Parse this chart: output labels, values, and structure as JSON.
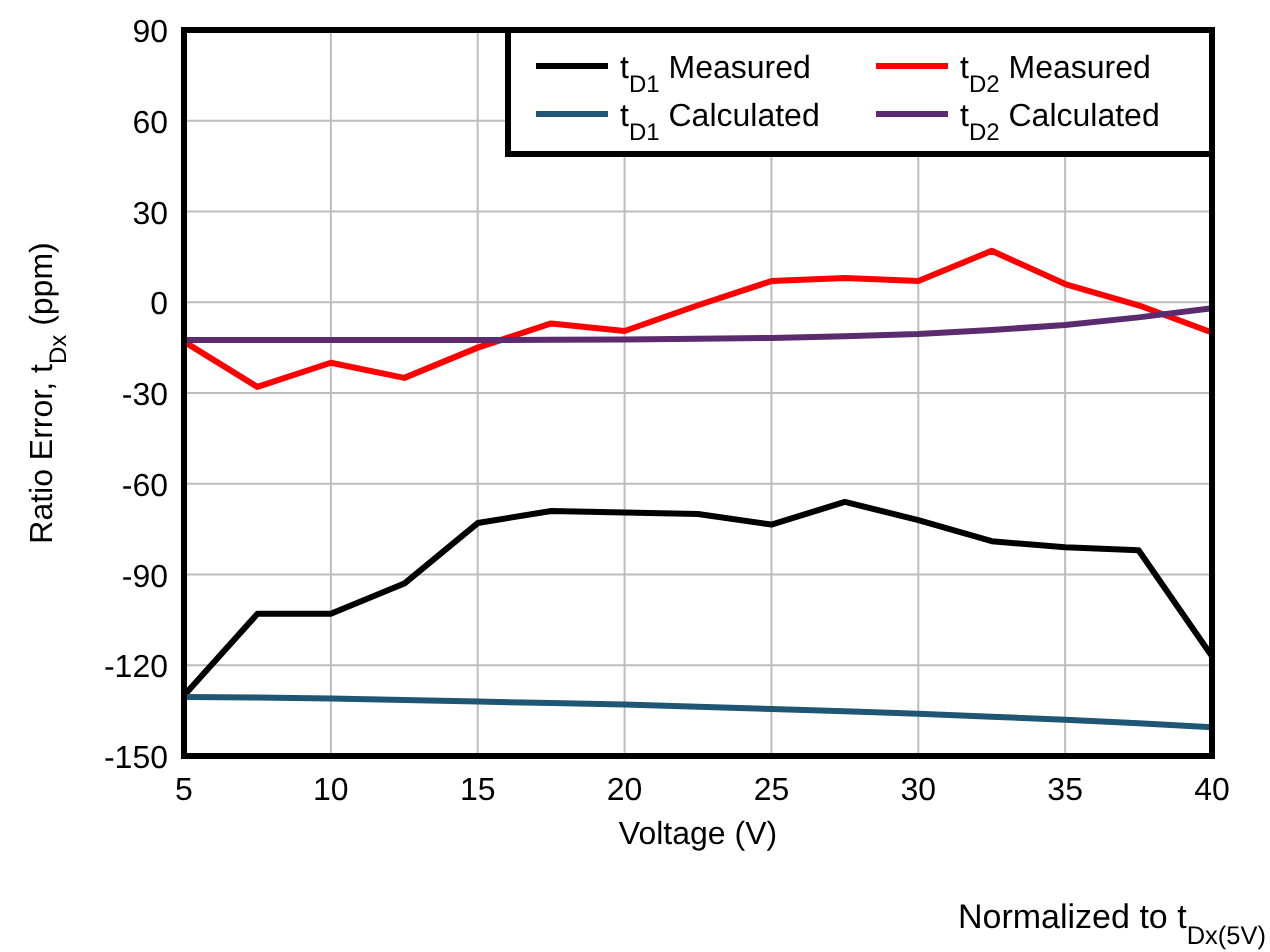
{
  "chart_data": {
    "type": "line",
    "xlabel": "Voltage (V)",
    "ylabel": "Ratio Error, t$_{Dx}$ (ppm)",
    "annotations": [
      "Normalized to t$_{Dx(5V)}$"
    ],
    "xlim": [
      5,
      40
    ],
    "xticks": [
      5,
      10,
      15,
      20,
      25,
      30,
      35,
      40
    ],
    "ylim": [
      -150,
      90
    ],
    "yticks": [
      -150,
      -120,
      -90,
      -60,
      -30,
      0,
      30,
      60,
      90
    ],
    "grid": true,
    "legend": "top right",
    "line_style": "solid",
    "marker": "none",
    "x": [
      5,
      7.5,
      10,
      12.5,
      15,
      17.5,
      20,
      22.5,
      25,
      27.5,
      30,
      32.5,
      35,
      37.5,
      40
    ],
    "series": [
      {
        "name": "t$_{D1}$ Measured",
        "color": "#000000",
        "values": [
          -130,
          -103,
          -103,
          -93,
          -73,
          -69,
          -69.5,
          -70,
          -73.5,
          -66,
          -72,
          -79,
          -81,
          -82,
          -117
        ]
      },
      {
        "name": "t$_{D1}$ Calculated",
        "color": "#1f5673",
        "values": [
          -130.5,
          -130.7,
          -131,
          -131.5,
          -132,
          -132.5,
          -133,
          -133.7,
          -134.5,
          -135.2,
          -136,
          -137,
          -138,
          -139.2,
          -140.5
        ]
      },
      {
        "name": "t$_{D2}$ Measured",
        "color": "#ff0000",
        "values": [
          -13,
          -28,
          -20,
          -25,
          -15,
          -7,
          -9.5,
          -1,
          7,
          8,
          7,
          17,
          6,
          -1,
          -10
        ]
      },
      {
        "name": "t$_{D2}$ Calculated",
        "color": "#5c2a6e",
        "values": [
          -12.5,
          -12.5,
          -12.5,
          -12.5,
          -12.5,
          -12.4,
          -12.3,
          -12.1,
          -11.8,
          -11.2,
          -10.5,
          -9.2,
          -7.5,
          -5,
          -2
        ]
      }
    ]
  }
}
